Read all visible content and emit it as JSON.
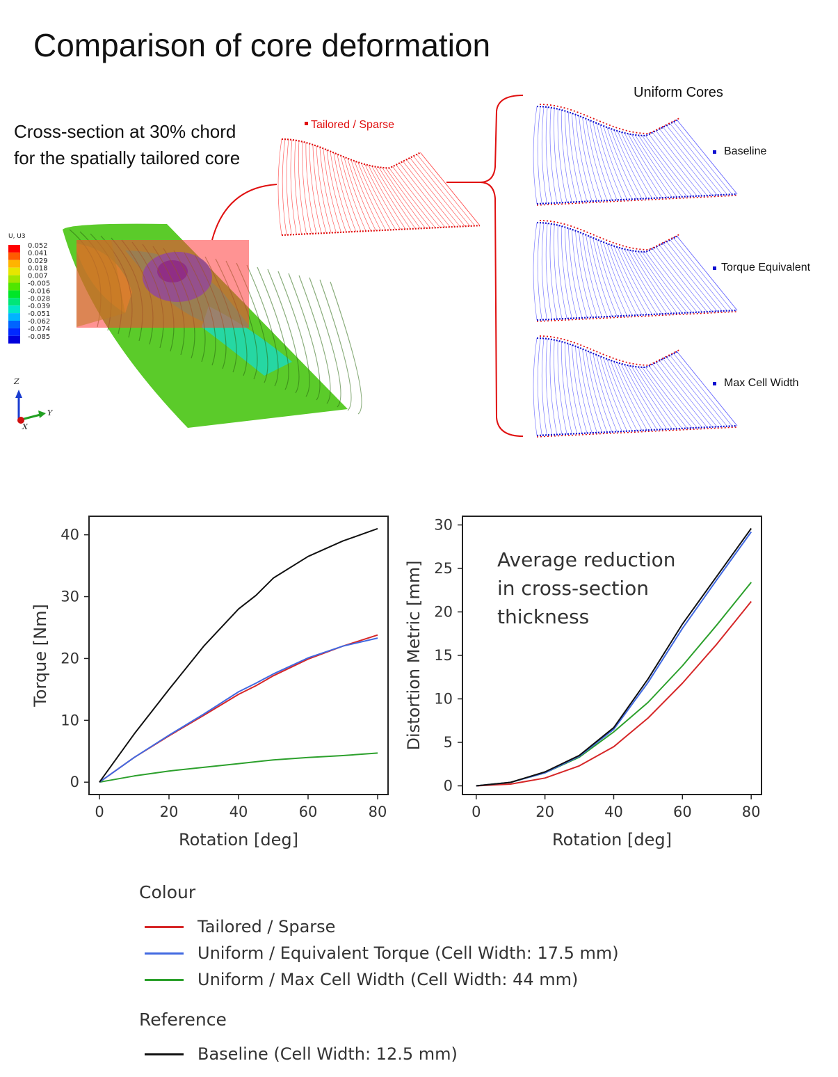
{
  "title": "Comparison of core deformation",
  "cross_section_caption": "Cross-section at 30% chord for the spatially tailored core",
  "tailored_label": "Tailored / Sparse",
  "uniform_cores_label": "Uniform Cores",
  "uniform_core_labels": [
    "Baseline",
    "Torque Equivalent",
    "Max Cell Width"
  ],
  "fea_legend": {
    "title": "U, U3",
    "values": [
      "0.052",
      "0.041",
      "0.029",
      "0.018",
      "0.007",
      "-0.005",
      "-0.016",
      "-0.028",
      "-0.039",
      "-0.051",
      "-0.062",
      "-0.074",
      "-0.085"
    ],
    "colors": [
      "#ff0000",
      "#ff5a00",
      "#ffb400",
      "#e6e600",
      "#a0e600",
      "#50e600",
      "#00e628",
      "#00e678",
      "#00e6c8",
      "#00b4ff",
      "#0064ff",
      "#0028ff",
      "#0000dc"
    ]
  },
  "triad": {
    "z": "Z",
    "y": "Y",
    "x": "X"
  },
  "annotation": "Average reduction in cross-section thickness",
  "colors": {
    "tailored": "#d62728",
    "equivalent": "#4169e1",
    "max_cell": "#2ca02c",
    "baseline": "#111111",
    "section_red": "#ff4d4d",
    "section_blue": "#6a6aff"
  },
  "legend": {
    "colour_title": "Colour",
    "reference_title": "Reference",
    "items": [
      {
        "label": "Tailored / Sparse",
        "color": "#d62728"
      },
      {
        "label": "Uniform / Equivalent Torque (Cell Width: 17.5 mm)",
        "color": "#4169e1"
      },
      {
        "label": "Uniform / Max Cell Width (Cell Width: 44 mm)",
        "color": "#2ca02c"
      }
    ],
    "reference_items": [
      {
        "label": "Baseline (Cell Width: 12.5 mm)",
        "color": "#111111"
      }
    ]
  },
  "chart_data": [
    {
      "type": "line",
      "xlabel": "Rotation [deg]",
      "ylabel": "Torque [Nm]",
      "xlim": [
        -3,
        83
      ],
      "ylim": [
        -2,
        43
      ],
      "xticks": [
        0,
        20,
        40,
        60,
        80
      ],
      "yticks": [
        0,
        10,
        20,
        30,
        40
      ],
      "x": [
        0,
        10,
        20,
        30,
        40,
        45,
        50,
        60,
        70,
        80
      ],
      "series": [
        {
          "name": "Tailored / Sparse",
          "values": [
            0,
            4.0,
            7.5,
            10.8,
            14.2,
            15.6,
            17.2,
            19.9,
            22.0,
            23.8
          ]
        },
        {
          "name": "Uniform / Equivalent Torque (Cell Width: 17.5 mm)",
          "values": [
            0,
            4.0,
            7.6,
            11.0,
            14.6,
            16.0,
            17.5,
            20.1,
            22.0,
            23.3
          ]
        },
        {
          "name": "Uniform / Max Cell Width (Cell Width: 44 mm)",
          "values": [
            0,
            1.0,
            1.8,
            2.4,
            3.0,
            3.3,
            3.6,
            4.0,
            4.3,
            4.7
          ]
        },
        {
          "name": "Baseline (Cell Width: 12.5 mm)",
          "values": [
            0,
            7.8,
            15.0,
            22.0,
            28.0,
            30.2,
            33.0,
            36.5,
            39.0,
            41.0
          ]
        }
      ]
    },
    {
      "type": "line",
      "xlabel": "Rotation [deg]",
      "ylabel": "Distortion Metric [mm]",
      "xlim": [
        -4,
        83
      ],
      "ylim": [
        -1,
        31
      ],
      "xticks": [
        0,
        20,
        40,
        60,
        80
      ],
      "yticks": [
        0,
        5,
        10,
        15,
        20,
        25,
        30
      ],
      "x": [
        0,
        10,
        20,
        30,
        40,
        50,
        60,
        70,
        80
      ],
      "series": [
        {
          "name": "Tailored / Sparse",
          "values": [
            0,
            0.2,
            0.9,
            2.3,
            4.5,
            7.8,
            11.8,
            16.3,
            21.2
          ]
        },
        {
          "name": "Uniform / Equivalent Torque (Cell Width: 17.5 mm)",
          "values": [
            0,
            0.4,
            1.5,
            3.4,
            6.5,
            11.9,
            18.1,
            23.7,
            29.2
          ]
        },
        {
          "name": "Uniform / Max Cell Width (Cell Width: 44 mm)",
          "values": [
            0,
            0.4,
            1.5,
            3.3,
            6.2,
            9.6,
            13.8,
            18.5,
            23.4
          ]
        },
        {
          "name": "Baseline (Cell Width: 12.5 mm)",
          "values": [
            0,
            0.4,
            1.6,
            3.5,
            6.7,
            12.3,
            18.6,
            24.1,
            29.6
          ]
        }
      ]
    }
  ]
}
